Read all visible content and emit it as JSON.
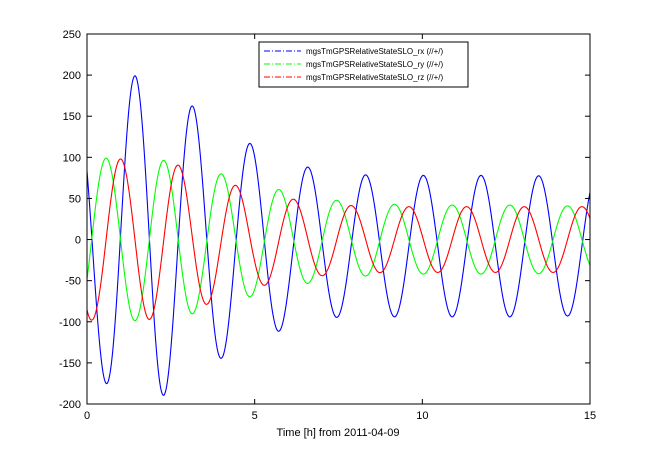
{
  "chart_data": {
    "type": "line",
    "xlabel": "Time [h] from 2011-04-09",
    "ylabel": "",
    "xlim": [
      0,
      15
    ],
    "ylim": [
      -200,
      250
    ],
    "xticks": [
      0,
      5,
      10,
      15
    ],
    "yticks": [
      250,
      200,
      150,
      100,
      50,
      0,
      -50,
      -100,
      -150,
      -200
    ],
    "xtick_labels": [
      "0",
      "5",
      "10",
      "15"
    ],
    "ytick_labels": [
      "250",
      "200",
      "150",
      "100",
      "50",
      "0",
      "-50",
      "-100",
      "-150",
      "-200"
    ],
    "grid": false,
    "legend_position": "top-right",
    "sample_step_h": 0.02,
    "series": [
      {
        "name": "mgsTmGPSRelativeStateSLO_rx (//+/)",
        "color": "#0000ff",
        "line_style": "dash-dot",
        "period_h": 1.72,
        "phase_h": 1.43,
        "amplitude_points_h": [
          0,
          1,
          2,
          3,
          4,
          5,
          6,
          7,
          8,
          9,
          10,
          11,
          12,
          13,
          14,
          15
        ],
        "amplitude_values": [
          160,
          195,
          197,
          170,
          140,
          120,
          100,
          90,
          86,
          86,
          86,
          86,
          86,
          86,
          85,
          85
        ],
        "offset_points_h": [
          0,
          1,
          3,
          5,
          7,
          9,
          15
        ],
        "offset_values": [
          5,
          5,
          -3,
          -6,
          -6,
          -8,
          -8
        ]
      },
      {
        "name": "mgsTmGPSRelativeStateSLO_ry (//+/)",
        "color": "#00ff00",
        "line_style": "dash-dot",
        "period_h": 1.72,
        "phase_h": 0.57,
        "amplitude_points_h": [
          0,
          1,
          2,
          3,
          4,
          5,
          6,
          7,
          8,
          9,
          10,
          11,
          12,
          13,
          14,
          15
        ],
        "amplitude_values": [
          99,
          99,
          98,
          92,
          80,
          68,
          58,
          50,
          45,
          43,
          42,
          42,
          42,
          42,
          41,
          41
        ],
        "offset_points_h": [
          0,
          15
        ],
        "offset_values": [
          0,
          0
        ]
      },
      {
        "name": "mgsTmGPSRelativeStateSLO_rz (//+/)",
        "color": "#ff0000",
        "line_style": "dash-dot",
        "period_h": 1.72,
        "phase_h": 1.0,
        "amplitude_points_h": [
          0,
          1,
          2,
          3,
          4,
          5,
          6,
          7,
          8,
          9,
          10,
          11,
          12,
          13,
          14,
          15
        ],
        "amplitude_values": [
          98,
          98,
          97,
          88,
          72,
          58,
          50,
          44,
          41,
          40,
          40,
          40,
          40,
          40,
          40,
          40
        ],
        "offset_points_h": [
          0,
          15
        ],
        "offset_values": [
          0,
          0
        ]
      }
    ]
  }
}
